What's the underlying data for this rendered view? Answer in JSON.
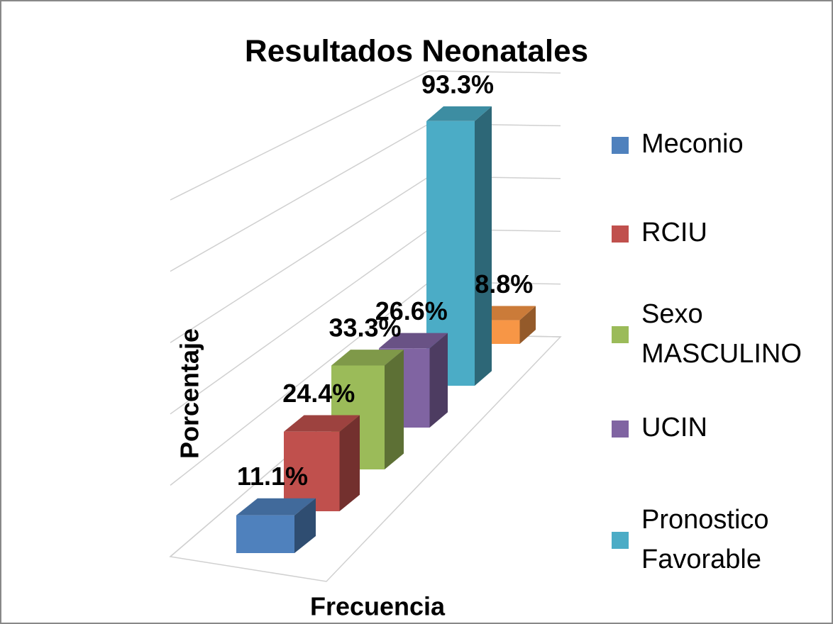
{
  "chart_data": {
    "type": "bar3d",
    "title": "Resultados Neonatales",
    "x_label": "Frecuencia",
    "y_label": "Porcentaje",
    "ylim": [
      0,
      100
    ],
    "yticks": [
      0,
      20,
      40,
      60,
      80,
      100
    ],
    "grid": true,
    "legend": "right",
    "series": [
      {
        "name": "Meconio",
        "color": "#4f81bd",
        "values": [
          11.1
        ],
        "value_labels": [
          "11.1%"
        ]
      },
      {
        "name": "RCIU",
        "color": "#c0504d",
        "values": [
          24.4
        ],
        "value_labels": [
          "24.4%"
        ]
      },
      {
        "name": "Sexo MASCULINO",
        "color": "#9bbb59",
        "values": [
          33.3
        ],
        "value_labels": [
          "33.3%"
        ]
      },
      {
        "name": "UCIN",
        "color": "#8064a2",
        "values": [
          26.6
        ],
        "value_labels": [
          "26.6%"
        ]
      },
      {
        "name": "Pronostico Favorable",
        "color": "#4bacc6",
        "values": [
          93.3
        ],
        "value_labels": [
          "93.3%"
        ]
      },
      {
        "name": null,
        "color": "#f79646",
        "values": [
          8.8
        ],
        "value_labels": [
          "8.8%"
        ]
      }
    ]
  }
}
